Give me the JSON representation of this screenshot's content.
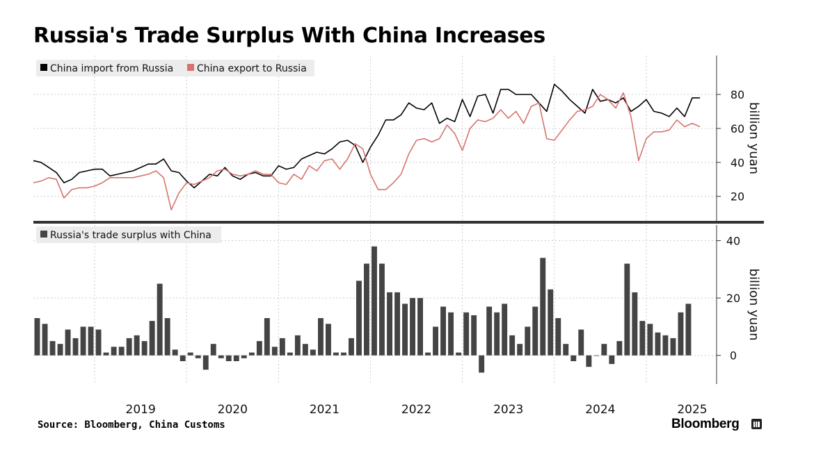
{
  "header": {
    "title": "Russia's Trade Surplus With China Increases"
  },
  "footer": {
    "source": "Source: Bloomberg, China Customs",
    "brand": "Bloomberg"
  },
  "icons": {
    "brand": "bloomberg-terminal-icon"
  },
  "chart_data": [
    {
      "type": "line",
      "title": "",
      "ylabel": "billion yuan",
      "ylim": [
        8,
        98
      ],
      "yticks": [
        20,
        40,
        60,
        80
      ],
      "y_axis_side": "right",
      "grid": true,
      "legend": "top-left",
      "xlim": [
        "2018-05",
        "2025-10"
      ],
      "x_tick_labels": [
        "2019",
        "2020",
        "2021",
        "2022",
        "2023",
        "2024",
        "2025"
      ],
      "series": [
        {
          "name": "China import from Russia",
          "color": "#000000",
          "points": [
            [
              "2018-05",
              41
            ],
            [
              "2018-06",
              40
            ],
            [
              "2018-07",
              37
            ],
            [
              "2018-08",
              34
            ],
            [
              "2018-09",
              28
            ],
            [
              "2018-10",
              30
            ],
            [
              "2018-11",
              34
            ],
            [
              "2018-12",
              35
            ],
            [
              "2019-01",
              36
            ],
            [
              "2019-02",
              36
            ],
            [
              "2019-03",
              32
            ],
            [
              "2019-04",
              33
            ],
            [
              "2019-05",
              34
            ],
            [
              "2019-06",
              35
            ],
            [
              "2019-07",
              37
            ],
            [
              "2019-08",
              39
            ],
            [
              "2019-09",
              39
            ],
            [
              "2019-10",
              42
            ],
            [
              "2019-11",
              35
            ],
            [
              "2019-12",
              34
            ],
            [
              "2020-01",
              29
            ],
            [
              "2020-02",
              25
            ],
            [
              "2020-03",
              29
            ],
            [
              "2020-04",
              33
            ],
            [
              "2020-05",
              32
            ],
            [
              "2020-06",
              37
            ],
            [
              "2020-07",
              32
            ],
            [
              "2020-08",
              30
            ],
            [
              "2020-09",
              33
            ],
            [
              "2020-10",
              34
            ],
            [
              "2020-11",
              32
            ],
            [
              "2020-12",
              32
            ],
            [
              "2021-01",
              38
            ],
            [
              "2021-02",
              36
            ],
            [
              "2021-03",
              37
            ],
            [
              "2021-04",
              42
            ],
            [
              "2021-05",
              44
            ],
            [
              "2021-06",
              46
            ],
            [
              "2021-07",
              45
            ],
            [
              "2021-08",
              48
            ],
            [
              "2021-09",
              52
            ],
            [
              "2021-10",
              53
            ],
            [
              "2021-11",
              50
            ],
            [
              "2021-12",
              40
            ],
            [
              "2022-01",
              49
            ],
            [
              "2022-02",
              56
            ],
            [
              "2022-03",
              65
            ],
            [
              "2022-04",
              65
            ],
            [
              "2022-05",
              68
            ],
            [
              "2022-06",
              75
            ],
            [
              "2022-07",
              72
            ],
            [
              "2022-08",
              71
            ],
            [
              "2022-09",
              75
            ],
            [
              "2022-10",
              63
            ],
            [
              "2022-11",
              66
            ],
            [
              "2022-12",
              64
            ],
            [
              "2023-01",
              77
            ],
            [
              "2023-02",
              67
            ],
            [
              "2023-03",
              79
            ],
            [
              "2023-04",
              80
            ],
            [
              "2023-05",
              69
            ],
            [
              "2023-06",
              83
            ],
            [
              "2023-07",
              83
            ],
            [
              "2023-08",
              80
            ],
            [
              "2023-09",
              80
            ],
            [
              "2023-10",
              80
            ],
            [
              "2023-11",
              75
            ],
            [
              "2023-12",
              70
            ],
            [
              "2024-01",
              86
            ],
            [
              "2024-02",
              82
            ],
            [
              "2024-03",
              77
            ],
            [
              "2024-04",
              73
            ],
            [
              "2024-05",
              69
            ],
            [
              "2024-06",
              83
            ],
            [
              "2024-07",
              76
            ],
            [
              "2024-08",
              77
            ],
            [
              "2024-09",
              75
            ],
            [
              "2024-10",
              78
            ],
            [
              "2024-11",
              70
            ],
            [
              "2024-12",
              73
            ],
            [
              "2025-01",
              77
            ],
            [
              "2025-02",
              70
            ],
            [
              "2025-03",
              69
            ],
            [
              "2025-04",
              67
            ],
            [
              "2025-05",
              72
            ],
            [
              "2025-06",
              67
            ],
            [
              "2025-07",
              78
            ],
            [
              "2025-08",
              78
            ]
          ]
        },
        {
          "name": "China export to Russia",
          "color": "#d6736c",
          "points": [
            [
              "2018-05",
              28
            ],
            [
              "2018-06",
              29
            ],
            [
              "2018-07",
              31
            ],
            [
              "2018-08",
              30
            ],
            [
              "2018-09",
              19
            ],
            [
              "2018-10",
              24
            ],
            [
              "2018-11",
              25
            ],
            [
              "2018-12",
              25
            ],
            [
              "2019-01",
              26
            ],
            [
              "2019-02",
              28
            ],
            [
              "2019-03",
              31
            ],
            [
              "2019-04",
              31
            ],
            [
              "2019-05",
              31
            ],
            [
              "2019-06",
              31
            ],
            [
              "2019-07",
              32
            ],
            [
              "2019-08",
              33
            ],
            [
              "2019-09",
              35
            ],
            [
              "2019-10",
              31
            ],
            [
              "2019-11",
              12
            ],
            [
              "2019-12",
              22
            ],
            [
              "2020-01",
              28
            ],
            [
              "2020-02",
              27
            ],
            [
              "2020-03",
              29
            ],
            [
              "2020-04",
              31
            ],
            [
              "2020-05",
              35
            ],
            [
              "2020-06",
              36
            ],
            [
              "2020-07",
              33
            ],
            [
              "2020-08",
              32
            ],
            [
              "2020-09",
              33
            ],
            [
              "2020-10",
              35
            ],
            [
              "2020-11",
              33
            ],
            [
              "2020-12",
              33
            ],
            [
              "2021-01",
              28
            ],
            [
              "2021-02",
              27
            ],
            [
              "2021-03",
              33
            ],
            [
              "2021-04",
              30
            ],
            [
              "2021-05",
              38
            ],
            [
              "2021-06",
              35
            ],
            [
              "2021-07",
              41
            ],
            [
              "2021-08",
              42
            ],
            [
              "2021-09",
              36
            ],
            [
              "2021-10",
              42
            ],
            [
              "2021-11",
              51
            ],
            [
              "2021-12",
              48
            ],
            [
              "2022-01",
              33
            ],
            [
              "2022-02",
              24
            ],
            [
              "2022-03",
              24
            ],
            [
              "2022-04",
              28
            ],
            [
              "2022-05",
              33
            ],
            [
              "2022-06",
              45
            ],
            [
              "2022-07",
              53
            ],
            [
              "2022-08",
              54
            ],
            [
              "2022-09",
              52
            ],
            [
              "2022-10",
              54
            ],
            [
              "2022-11",
              62
            ],
            [
              "2022-12",
              57
            ],
            [
              "2023-01",
              47
            ],
            [
              "2023-02",
              60
            ],
            [
              "2023-03",
              65
            ],
            [
              "2023-04",
              64
            ],
            [
              "2023-05",
              66
            ],
            [
              "2023-06",
              71
            ],
            [
              "2023-07",
              66
            ],
            [
              "2023-08",
              70
            ],
            [
              "2023-09",
              63
            ],
            [
              "2023-10",
              73
            ],
            [
              "2023-11",
              75
            ],
            [
              "2023-12",
              54
            ],
            [
              "2024-01",
              53
            ],
            [
              "2024-02",
              59
            ],
            [
              "2024-03",
              65
            ],
            [
              "2024-04",
              70
            ],
            [
              "2024-05",
              71
            ],
            [
              "2024-06",
              73
            ],
            [
              "2024-07",
              80
            ],
            [
              "2024-08",
              77
            ],
            [
              "2024-09",
              72
            ],
            [
              "2024-10",
              81
            ],
            [
              "2024-11",
              67
            ],
            [
              "2024-12",
              41
            ],
            [
              "2025-01",
              54
            ],
            [
              "2025-02",
              58
            ],
            [
              "2025-03",
              58
            ],
            [
              "2025-04",
              59
            ],
            [
              "2025-05",
              65
            ],
            [
              "2025-06",
              61
            ],
            [
              "2025-07",
              63
            ],
            [
              "2025-08",
              61
            ]
          ]
        }
      ]
    },
    {
      "type": "bar",
      "title": "",
      "ylabel": "billion yuan",
      "ylim": [
        -10,
        44
      ],
      "yticks": [
        0,
        20,
        40
      ],
      "y_axis_side": "right",
      "grid": true,
      "legend": "top-left",
      "xlim": [
        "2018-05",
        "2025-10"
      ],
      "x_tick_labels": [
        "2019",
        "2020",
        "2021",
        "2022",
        "2023",
        "2024",
        "2025"
      ],
      "series": [
        {
          "name": "Russia's trade surplus with China",
          "color": "#444444",
          "start": "2018-05",
          "values": [
            13,
            11,
            5,
            4,
            9,
            6,
            10,
            10,
            9,
            1,
            3,
            3,
            6,
            7,
            5,
            12,
            25,
            13,
            2,
            -2,
            1,
            -1,
            -5,
            4,
            -1,
            -2,
            -2,
            -1,
            1,
            5,
            13,
            3,
            6,
            1,
            7,
            4,
            2,
            13,
            11,
            1,
            1,
            6,
            26,
            32,
            38,
            32,
            22,
            22,
            18,
            20,
            20,
            1,
            10,
            17,
            15,
            1,
            15,
            14,
            -6,
            17,
            15,
            18,
            7,
            4,
            10,
            17,
            34,
            23,
            13,
            4,
            -2,
            9,
            -4,
            0,
            4,
            -3,
            5,
            32,
            22,
            12,
            11,
            8,
            7,
            6,
            15,
            18
          ]
        }
      ]
    }
  ]
}
